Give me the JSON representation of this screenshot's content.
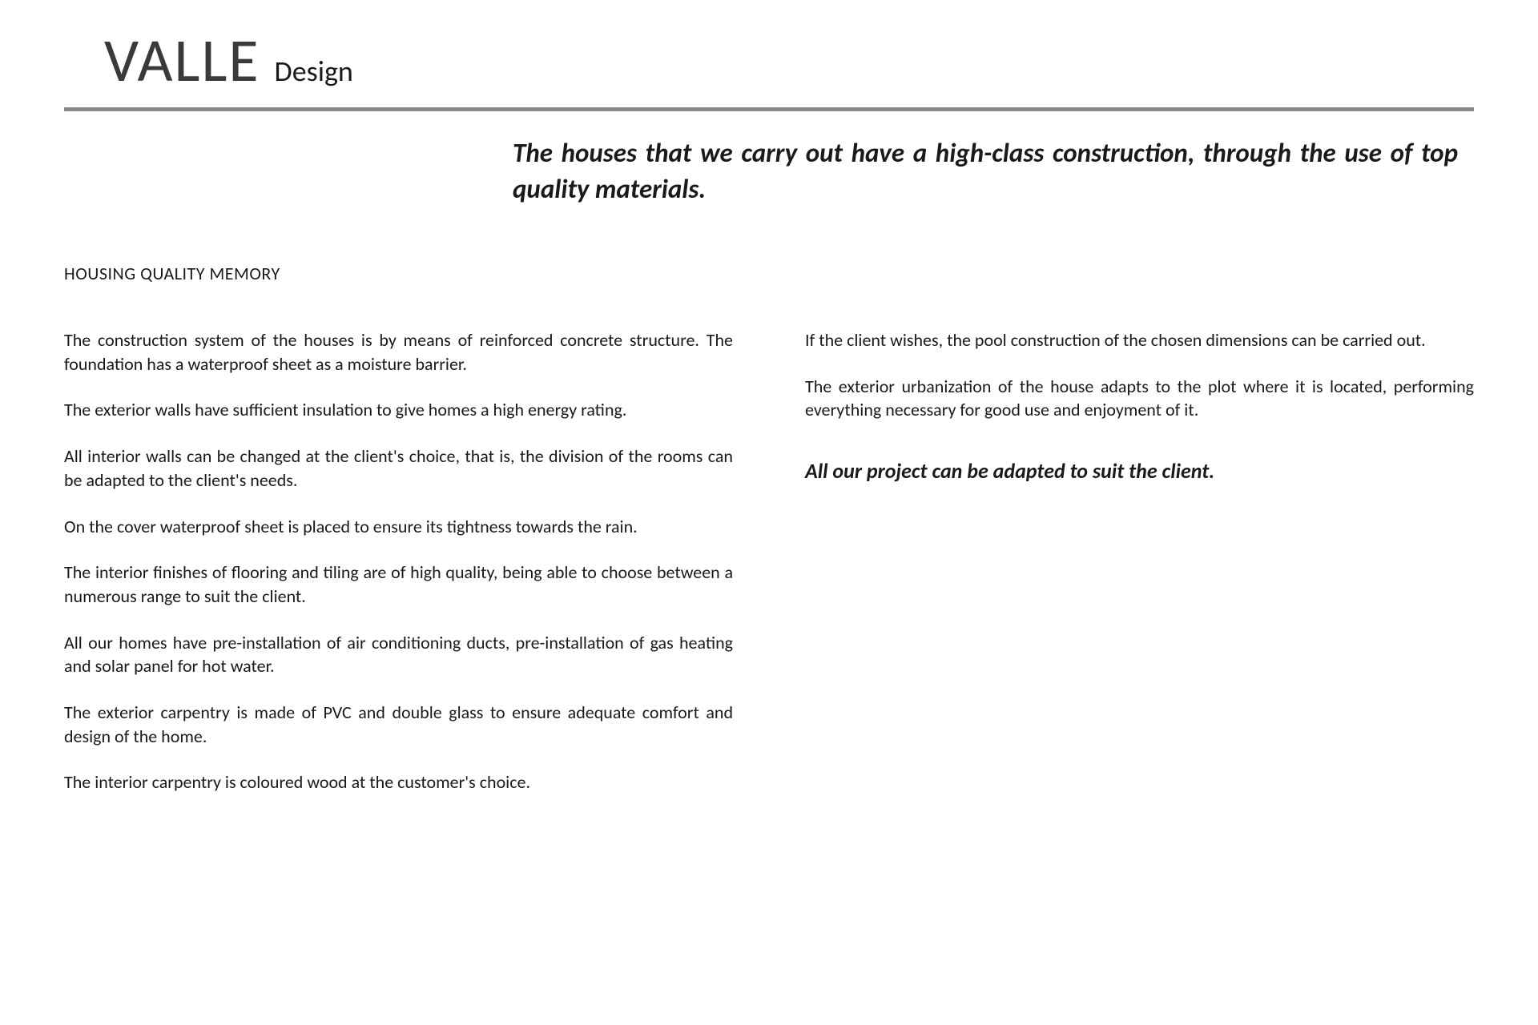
{
  "header": {
    "brand_main": "VALLE",
    "brand_sub": "Design"
  },
  "intro": "The houses that we carry out have a high-class construction, through the use of top quality materials.",
  "section_title": "HOUSING QUALITY MEMORY",
  "left_paragraphs": [
    "The construction system of the houses is by means of reinforced concrete structure. The foundation has a waterproof sheet as a moisture barrier.",
    "The exterior walls have sufficient insulation to give homes a high energy rating.",
    "All interior walls can be changed at the client's choice, that is, the division of the rooms can be adapted to the client's needs.",
    "On the cover waterproof sheet is placed to ensure its tightness towards the rain.",
    "The interior finishes of flooring and tiling are of high quality, being able to choose between a numerous range to suit the client.",
    "All our homes have pre-installation of air conditioning ducts, pre-installation of gas heating and solar panel for hot water.",
    "The exterior carpentry is made of PVC and double glass to ensure adequate comfort and design of the home.",
    "The interior carpentry is coloured wood at the customer's choice."
  ],
  "right_paragraphs": [
    "If the client wishes, the pool construction of the chosen dimensions can be carried out.",
    "The exterior urbanization of the house adapts to the plot where it is located, performing everything necessary for good use and enjoyment of it."
  ],
  "closing": "All our project can be adapted to suit the client.",
  "style": {
    "page_bg": "#ffffff",
    "text_color": "#1a1a1a",
    "rule_color": "#888888",
    "brand_color": "#3a3a3a",
    "brand_main_fontsize": 76,
    "brand_sub_fontsize": 36,
    "intro_fontsize": 33,
    "section_title_fontsize": 22,
    "body_fontsize": 22,
    "closing_fontsize": 26,
    "font_family": "Calibri"
  }
}
